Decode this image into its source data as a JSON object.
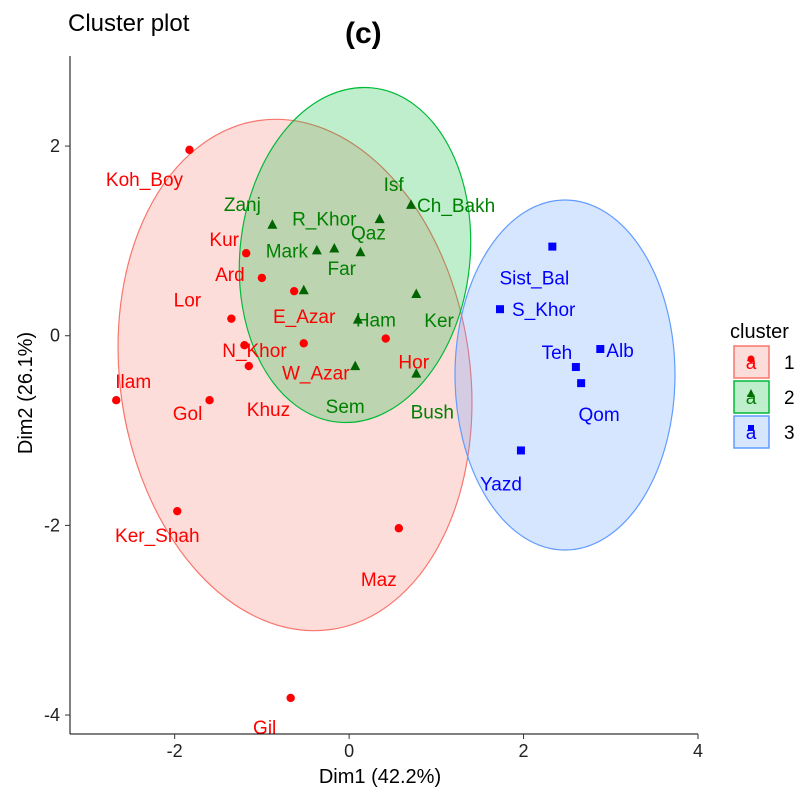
{
  "chart_data": {
    "type": "scatter",
    "title": "Cluster plot",
    "subtitle": "(c)",
    "xlabel": "Dim1 (42.2%)",
    "ylabel": "Dim2 (26.1%)",
    "xlim": [
      -3.2,
      4.0
    ],
    "ylim": [
      -4.2,
      2.95
    ],
    "xticks": [
      -2,
      0,
      2,
      4
    ],
    "yticks": [
      -4,
      -2,
      0,
      2
    ],
    "grid": false,
    "legend": {
      "title": "cluster",
      "placement": "right",
      "entries": [
        {
          "label": "1",
          "glyph": "a"
        },
        {
          "label": "2",
          "glyph": "a"
        },
        {
          "label": "3",
          "glyph": "a"
        }
      ]
    },
    "colors": {
      "1": "#F8766D",
      "2": "#00BA38",
      "3": "#619CFF"
    },
    "markers": {
      "1": "circle",
      "2": "triangle",
      "3": "square"
    },
    "label_colors": {
      "1": "#FF0000",
      "2": "#008000",
      "3": "#0000FF"
    },
    "point_colors": {
      "1": "#FF0000",
      "2": "#006400",
      "3": "#0000FF"
    },
    "series": [
      {
        "name": "1",
        "points": [
          {
            "label": "Koh_Boy",
            "x": -1.83,
            "y": 1.96
          },
          {
            "label": "Kur",
            "x": -1.18,
            "y": 0.87
          },
          {
            "label": "Ard",
            "x": -1.0,
            "y": 0.61
          },
          {
            "label": "E_Azar",
            "x": -0.63,
            "y": 0.47
          },
          {
            "label": "Lor",
            "x": -1.35,
            "y": 0.18
          },
          {
            "label": "N_Khor",
            "x": -1.2,
            "y": -0.1
          },
          {
            "label": "Khuz",
            "x": -1.15,
            "y": -0.32
          },
          {
            "label": "W_Azar",
            "x": -0.52,
            "y": -0.08
          },
          {
            "label": "Hor",
            "x": 0.42,
            "y": -0.03
          },
          {
            "label": "Ilam",
            "x": -2.67,
            "y": -0.68
          },
          {
            "label": "Gol",
            "x": -1.6,
            "y": -0.68
          },
          {
            "label": "Ker_Shah",
            "x": -1.97,
            "y": -1.85
          },
          {
            "label": "Maz",
            "x": 0.57,
            "y": -2.03
          },
          {
            "label": "Gil",
            "x": -0.67,
            "y": -3.82
          }
        ]
      },
      {
        "name": "2",
        "points": [
          {
            "label": "Isf",
            "x": 0.35,
            "y": 1.23
          },
          {
            "label": "Zanj",
            "x": -0.88,
            "y": 1.17
          },
          {
            "label": "R_Khor",
            "x": -0.17,
            "y": 0.92
          },
          {
            "label": "Ch_Bakh",
            "x": 0.71,
            "y": 1.38
          },
          {
            "label": "Mark",
            "x": -0.37,
            "y": 0.9
          },
          {
            "label": "Qaz",
            "x": 0.13,
            "y": 0.88
          },
          {
            "label": "Far",
            "x": -0.52,
            "y": 0.48
          },
          {
            "label": "Ham",
            "x": 0.1,
            "y": 0.17
          },
          {
            "label": "Ker",
            "x": 0.77,
            "y": 0.44
          },
          {
            "label": "Sem",
            "x": 0.07,
            "y": -0.32
          },
          {
            "label": "Bush",
            "x": 0.77,
            "y": -0.4
          }
        ]
      },
      {
        "name": "3",
        "points": [
          {
            "label": "Sist_Bal",
            "x": 2.33,
            "y": 0.94
          },
          {
            "label": "S_Khor",
            "x": 1.73,
            "y": 0.28
          },
          {
            "label": "Alb",
            "x": 2.88,
            "y": -0.14
          },
          {
            "label": "Teh",
            "x": 2.6,
            "y": -0.33
          },
          {
            "label": "Qom",
            "x": 2.66,
            "y": -0.5
          },
          {
            "label": "Yazd",
            "x": 1.97,
            "y": -1.21
          }
        ]
      }
    ]
  }
}
